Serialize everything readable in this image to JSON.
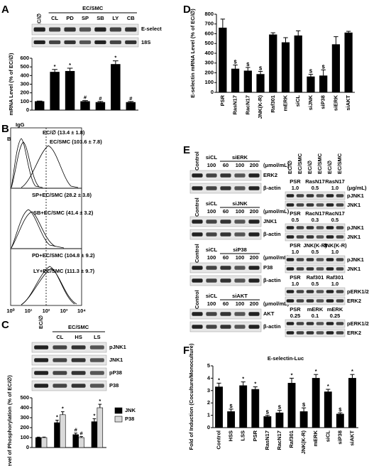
{
  "chart_data": [
    {
      "type": "bar",
      "categories": [
        "EC/∅",
        "CL",
        "PD",
        "SP",
        "SB",
        "LY",
        "CB"
      ],
      "values": [
        100,
        440,
        450,
        100,
        90,
        530,
        90
      ],
      "errors": [
        5,
        30,
        35,
        10,
        10,
        40,
        10
      ],
      "annotations": [
        null,
        "*",
        "*",
        "#",
        "#",
        "*",
        "#"
      ],
      "ylabel": "mRNA Level (% of EC/∅)",
      "ylim": [
        0,
        600
      ],
      "yticks": [
        0,
        100,
        200,
        300,
        400,
        500,
        600
      ],
      "color": "#000000"
    },
    {
      "type": "bar",
      "categories": [
        "EC/∅",
        "CL",
        "HS",
        "LS"
      ],
      "series": [
        {
          "name": "JNK",
          "color": "#000000",
          "values": [
            100,
            250,
            130,
            260
          ],
          "errors": [
            5,
            25,
            15,
            30
          ],
          "annotations": [
            null,
            "*",
            "#",
            "*"
          ]
        },
        {
          "name": "P38",
          "color": "#d9d9d9",
          "values": [
            100,
            330,
            100,
            400
          ],
          "errors": [
            5,
            30,
            10,
            35
          ],
          "annotations": [
            null,
            "*",
            "#",
            "*"
          ]
        }
      ],
      "ylabel": "Level of Phosphorylation (% of EC/∅)",
      "ylim": [
        0,
        500
      ],
      "yticks": [
        0,
        100,
        200,
        300,
        400,
        500
      ]
    },
    {
      "type": "bar",
      "categories": [
        "PSR",
        "RasN17",
        "RacN17",
        "JNK(K-R)",
        "Raf301",
        "mERK",
        "siCL",
        "siJNK",
        "siP38",
        "siERK",
        "siAKT"
      ],
      "values": [
        660,
        240,
        220,
        185,
        590,
        510,
        580,
        160,
        170,
        490,
        610
      ],
      "errors": [
        90,
        40,
        35,
        30,
        20,
        50,
        50,
        25,
        60,
        80,
        15
      ],
      "annotations": [
        null,
        "$",
        "$",
        "$",
        null,
        null,
        null,
        "$",
        "$",
        null,
        null
      ],
      "ylabel": "E-selectin mRNA Level (% of EC/∅)",
      "ylim": [
        0,
        800
      ],
      "yticks": [
        0,
        100,
        200,
        300,
        400,
        500,
        600,
        700,
        800
      ],
      "color": "#000000"
    },
    {
      "type": "bar",
      "title": "E-selectin-Luc",
      "categories": [
        "Control",
        "HSS",
        "LSS",
        "PSR",
        "RasN17",
        "RacN17",
        "Raf301",
        "JNK(K-R)",
        "mERK",
        "siCL",
        "siP38",
        "siAKT"
      ],
      "values": [
        3.3,
        1.3,
        3.4,
        3.1,
        0.9,
        1.2,
        3.6,
        1.3,
        4.0,
        2.9,
        1.1,
        4.0
      ],
      "errors": [
        0.3,
        0.2,
        0.3,
        0.2,
        0.1,
        0.2,
        0.4,
        0.3,
        0.3,
        0.2,
        0.1,
        0.3
      ],
      "annotations": [
        "*",
        "$",
        "*",
        "*",
        "$",
        "$",
        "*",
        "$",
        "*",
        "*",
        "$",
        "*"
      ],
      "ylabel": "Fold of Induction (Coculture/Monoculture)",
      "ylim": [
        0,
        5
      ],
      "yticks": [
        0,
        1,
        2,
        3,
        4,
        5
      ],
      "color": "#000000"
    }
  ],
  "panels": {
    "letters": [
      "A",
      "B",
      "C",
      "D",
      "E",
      "F"
    ],
    "A": {
      "group": "EC/SMC",
      "bands": [
        "E-select",
        "18S"
      ]
    },
    "B": {
      "igg": "IgG",
      "b": "B",
      "labels": [
        "EC/∅ (13.4 ± 1.8)",
        "EC/SMC (103.6 ± 7.8)",
        "SP+EC/SMC (28.2 ± 3.8)",
        "SB+EC/SMC (41.4 ± 3.2)",
        "PD+EC/SMC (104.8 ± 9.2)",
        "LY+EC/SMC (111.3 ± 9.7)"
      ],
      "xticks": [
        "10⁰",
        "10¹",
        "10²",
        "10³",
        "10⁴"
      ]
    },
    "C": {
      "group": "EC/SMC",
      "bands": [
        "pJNK1",
        "JNK1",
        "pP38",
        "P38"
      ]
    },
    "E": {
      "control": "Control",
      "left_unit": "(μmol/mL)",
      "right_unit": "(μg/mL)",
      "left": [
        {
          "ctrl": "siCL",
          "group": "siERK",
          "doses": [
            "100",
            "60",
            "100",
            "200"
          ],
          "bands": [
            "ERK2",
            "β-actin"
          ]
        },
        {
          "ctrl": "siCL",
          "group": "siJNK",
          "doses": [
            "100",
            "60",
            "100",
            "200"
          ],
          "bands": [
            "JNK1",
            "β-actin"
          ]
        },
        {
          "ctrl": "siCL",
          "group": "siP38",
          "doses": [
            "100",
            "60",
            "100",
            "200"
          ],
          "bands": [
            "P38",
            "β-actin"
          ]
        },
        {
          "ctrl": "siCL",
          "group": "siAKT",
          "doses": [
            "100",
            "60",
            "100",
            "200"
          ],
          "bands": [
            "AKT",
            "β-actin"
          ]
        }
      ],
      "header": [
        "EC/∅",
        "EC/SMC",
        "EC/∅",
        "EC/SMC",
        "EC/∅",
        "EC/SMC"
      ],
      "right": [
        {
          "names": [
            "PSR",
            "RasN17",
            "RasN17"
          ],
          "doses": [
            "1.0",
            "0.5",
            "1.0"
          ],
          "bands": [
            "pJNK1",
            "JNK1"
          ]
        },
        {
          "names": [
            "PSR",
            "RacN17",
            "RacN17"
          ],
          "doses": [
            "0.5",
            "0.3",
            "0.5"
          ],
          "bands": [
            "pJNK1",
            "JNK1"
          ]
        },
        {
          "names": [
            "PSR",
            "JNK(K-R)",
            "JNK(K-R)"
          ],
          "doses": [
            "1.0",
            "0.5",
            "1.0"
          ],
          "bands": [
            "pJNK1",
            "JNK1"
          ]
        },
        {
          "names": [
            "PSR",
            "Raf301",
            "Raf301"
          ],
          "doses": [
            "1.0",
            "0.5",
            "1.0"
          ],
          "bands": [
            "pERK1/2",
            "ERK2"
          ]
        },
        {
          "names": [
            "PSR",
            "mERK",
            "mERK"
          ],
          "doses": [
            "0.25",
            "0.1",
            "0.25"
          ],
          "bands": [
            "pERK1/2",
            "ERK2"
          ]
        }
      ]
    }
  }
}
